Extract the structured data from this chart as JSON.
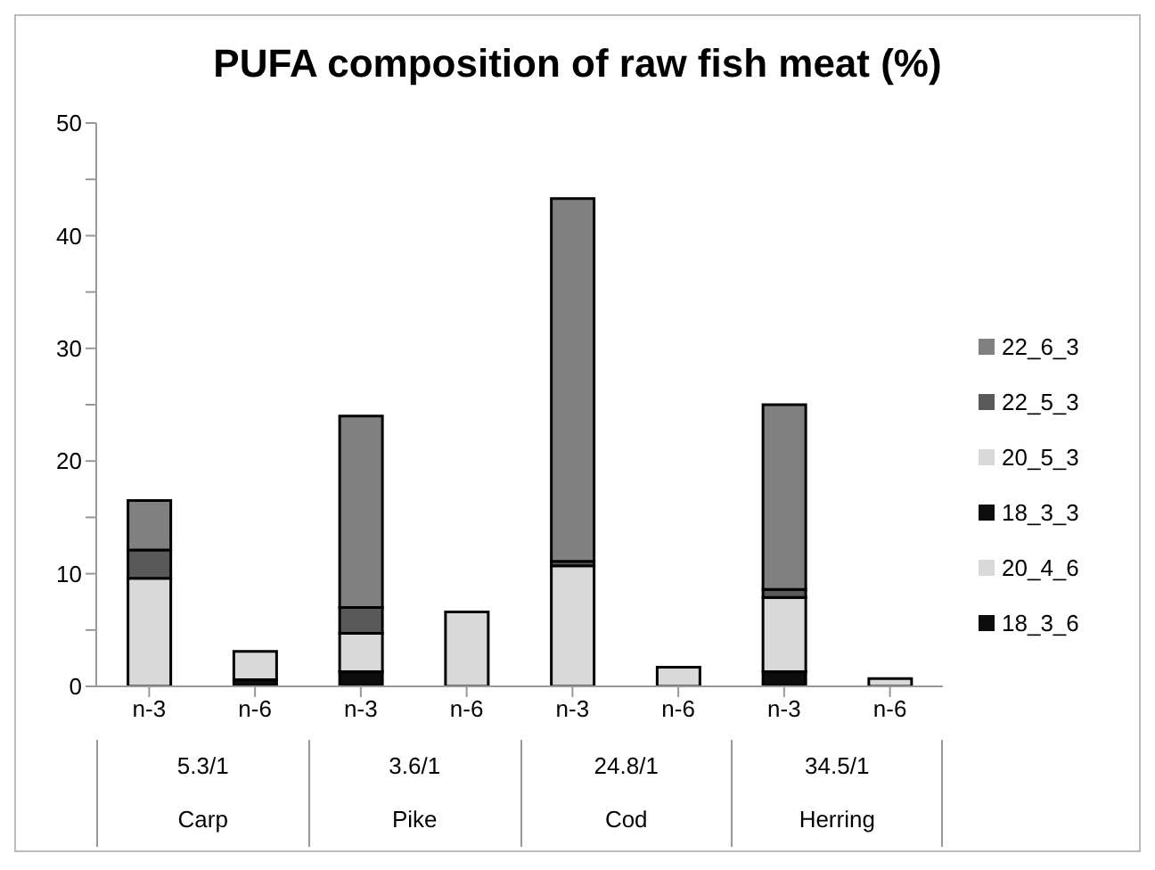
{
  "chart_data": {
    "type": "bar",
    "title": "PUFA composition of raw fish meat (%)",
    "categories": [
      "n-3",
      "n-6",
      "n-3",
      "n-6",
      "n-3",
      "n-6",
      "n-3",
      "n-6"
    ],
    "annotations": [
      "5.3/1",
      "3.6/1",
      "24.8/1",
      "34.5/1",
      "Carp",
      "Pike",
      "Cod",
      "Herring"
    ],
    "stacked": true,
    "series": [
      {
        "name": "18_3_6",
        "color": "#0d0d0d",
        "values": [
          null,
          0.6,
          null,
          null,
          null,
          null,
          null,
          null
        ]
      },
      {
        "name": "20_4_6",
        "color": "#d9d9d9",
        "values": [
          null,
          2.5,
          null,
          6.6,
          null,
          1.7,
          null,
          0.7
        ]
      },
      {
        "name": "18_3_3",
        "color": "#0d0d0d",
        "values": [
          null,
          null,
          1.3,
          null,
          null,
          null,
          1.3,
          null
        ]
      },
      {
        "name": "20_5_3",
        "color": "#d9d9d9",
        "values": [
          9.6,
          null,
          3.4,
          null,
          10.7,
          null,
          6.6,
          null
        ]
      },
      {
        "name": "22_5_3",
        "color": "#595959",
        "values": [
          2.5,
          null,
          2.3,
          null,
          0.4,
          null,
          0.7,
          null
        ]
      },
      {
        "name": "22_6_3",
        "color": "#808080",
        "values": [
          4.4,
          null,
          17,
          null,
          32.2,
          null,
          16.4,
          null
        ]
      }
    ],
    "ylim": [
      0,
      50
    ],
    "yticks": [
      0,
      {
        "value": 5,
        "label": null
      },
      10,
      {
        "value": 15,
        "label": null
      },
      20,
      {
        "value": 25,
        "label": null
      },
      30,
      {
        "value": 35,
        "label": null
      },
      40,
      {
        "value": 45,
        "label": null
      },
      50
    ],
    "grid": false,
    "legend": "right"
  }
}
